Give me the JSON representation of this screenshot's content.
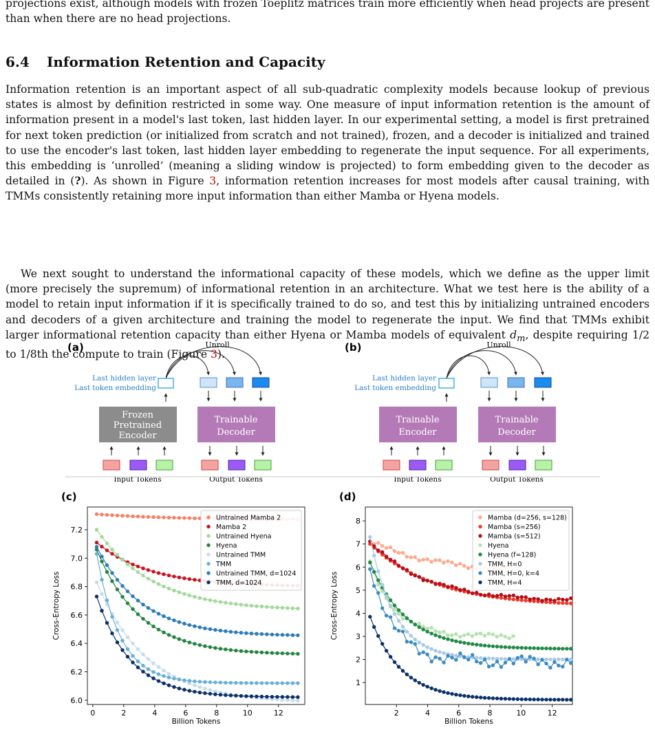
{
  "paper": {
    "para0": "projections exist, although models with frozen Toeplitz matrices train more efficiently when head projects are present than when there are no head projections.",
    "section_number": "6.4",
    "section_title": "Information Retention and Capacity",
    "para1_a": "Information retention is an important aspect of all sub-quadratic complexity models because lookup of previous states is almost by definition restricted in some way. One measure of input information retention is the amount of information present in a model's last token, last hidden layer. In our experimental setting, a model is first pretrained for next token prediction (or initialized from scratch and not trained), frozen, and a decoder is initialized and trained to use the encoder's last token, last hidden layer embedding to regenerate the input sequence. For all experiments, this embedding is ‘unrolled’ (meaning a sliding window is projected) to form embedding given to the decoder as detailed in (",
    "para1_cite_q": "?",
    "para1_b": "). As shown in Figure ",
    "para1_fig": "3",
    "para1_c": ", information retention increases for most models after causal training, with TMMs consistently retaining more input information than either Mamba or Hyena models.",
    "para2_a": "We next sought to understand the informational capacity of these models, which we define as the upper limit (more precisely the supremum) of informational retention in an architecture. What we test here is the ability of a model to retain input information if it is specifically trained to do so, and test this by initializing untrained encoders and decoders of a given architecture and training the model to regenerate the input. We find that TMMs exhibit larger informational retention capacity than either Hyena or Mamba models of equivalent ",
    "para2_var": "d",
    "para2_sub": "m",
    "para2_b": ", despite requiring 1/2 to 1/8th the compute to train (Figure ",
    "para2_fig": "3",
    "para2_c": ")."
  },
  "diagrams": {
    "a": {
      "label": "(a)",
      "unroll": "Unroll",
      "hidden_line1": "Last hidden layer",
      "hidden_line2": "Last token embedding",
      "encoder_lines": [
        "Frozen",
        "Pretrained",
        "Encoder"
      ],
      "decoder_lines": [
        "Trainable",
        "Decoder"
      ],
      "input_label": "Input Tokens",
      "output_label": "Output Tokens"
    },
    "b": {
      "label": "(b)",
      "unroll": "Unroll",
      "hidden_line1": "Last hidden layer",
      "hidden_line2": "Last token embedding",
      "encoder_lines": [
        "Trainable",
        "Encoder"
      ],
      "decoder_lines": [
        "Trainable",
        "Decoder"
      ],
      "input_label": "Input Tokens",
      "output_label": "Output Tokens"
    },
    "colors": {
      "frozen_box": "#8c8c8c",
      "trainable_box": "#b47ab8",
      "token_red": "#f4a3a3",
      "token_purple": "#9b59f5",
      "token_green": "#b8f2a8",
      "emb_light": "#cfe6f8",
      "emb_mid": "#78b6ec",
      "emb_dark": "#1a8cf0",
      "hidden_text": "#2a7fc4"
    }
  },
  "chart_data": [
    {
      "panel": "(c)",
      "type": "line",
      "xlabel": "Billion Tokens",
      "ylabel": "Cross-Entropy Loss",
      "xlim": [
        -0.35,
        13.7
      ],
      "ylim": [
        5.97,
        7.36
      ],
      "xticks": [
        0,
        2,
        4,
        6,
        8,
        10,
        12
      ],
      "yticks": [
        6.0,
        6.2,
        6.4,
        6.6,
        6.8,
        7.0,
        7.2
      ],
      "legend_position": "top-right",
      "x_start": 0.25,
      "x_end": 13.25,
      "n_points": 40,
      "series": [
        {
          "name": "Untrained Mamba 2",
          "color": "#f28268",
          "start": 7.31,
          "end": 7.27,
          "tau": 5
        },
        {
          "name": "Mamba 2",
          "color": "#c8141e",
          "start": 7.11,
          "end": 6.8,
          "tau": 3.4
        },
        {
          "name": "Untrained Hyena",
          "color": "#a2d99b",
          "start": 7.2,
          "end": 6.63,
          "tau": 3.6
        },
        {
          "name": "Hyena",
          "color": "#23843f",
          "start": 7.06,
          "end": 6.32,
          "tau": 2.8
        },
        {
          "name": "Untrained TMM",
          "color": "#c7dcef",
          "start": 6.83,
          "end": 5.98,
          "tau": 3.3
        },
        {
          "name": "TMM",
          "color": "#6aaed6",
          "start": 7.03,
          "end": 6.12,
          "tau": 1.5
        },
        {
          "name": "Untrained TMM, d=1024",
          "color": "#2b7bba",
          "start": 7.08,
          "end": 6.45,
          "tau": 2.9
        },
        {
          "name": "TMM, d=1024",
          "color": "#0a306b",
          "start": 6.73,
          "end": 6.02,
          "tau": 2.2
        }
      ]
    },
    {
      "panel": "(d)",
      "type": "line",
      "xlabel": "Billion Tokens",
      "ylabel": "Cross-Entropy Loss",
      "xlim": [
        0.0,
        13.3
      ],
      "ylim": [
        0.05,
        8.6
      ],
      "xticks": [
        2,
        4,
        6,
        8,
        10,
        12
      ],
      "yticks": [
        1,
        2,
        3,
        4,
        5,
        6,
        7,
        8
      ],
      "legend_position": "top-right",
      "x_start": 0.3,
      "x_end": 13.2,
      "n_points": 50,
      "series": [
        {
          "name": "Mamba (d=256, s=128)",
          "color": "#fcaa8e",
          "start": 7.1,
          "end": 5.7,
          "tau": 4.5,
          "x_end": 9.5,
          "noise": 0.12
        },
        {
          "name": "Mamba (s=256)",
          "color": "#ef3b2c",
          "start": 7.0,
          "end": 4.3,
          "tau": 4.2
        },
        {
          "name": "Mamba (s=512)",
          "color": "#b50e17",
          "start": 7.1,
          "end": 4.5,
          "tau": 3.6,
          "noise": 0.08
        },
        {
          "name": "Hyena",
          "color": "#b6e2ad",
          "start": 6.2,
          "end": 3.0,
          "tau": 1.6,
          "x_end": 9.5,
          "noise": 0.12
        },
        {
          "name": "Hyena (f=128)",
          "color": "#1e8a43",
          "start": 6.2,
          "end": 2.45,
          "tau": 2.3
        },
        {
          "name": "TMM, H=0",
          "color": "#a9cae6",
          "start": 7.3,
          "end": 2.0,
          "tau": 1.6
        },
        {
          "name": "TMM, H=0, k=4",
          "color": "#3c8cc3",
          "start": 6.1,
          "end": 1.9,
          "tau": 1.5,
          "noise": 0.3
        },
        {
          "name": "TMM, H=4",
          "color": "#0a306b",
          "start": 3.85,
          "end": 0.25,
          "tau": 2.0
        }
      ]
    }
  ]
}
